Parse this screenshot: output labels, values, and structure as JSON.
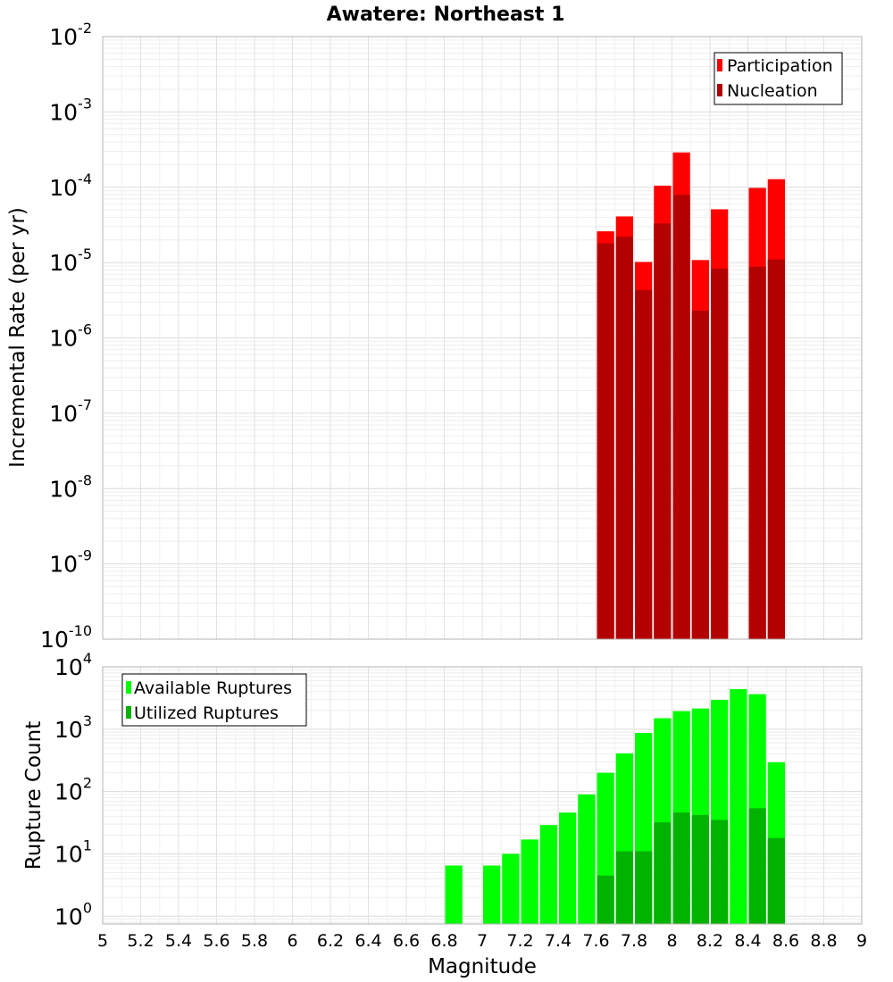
{
  "chart_data": [
    {
      "type": "bar",
      "title": "Awatere: Northeast 1",
      "xlabel": "",
      "ylabel": "Incremental Rate (per yr)",
      "yscale": "log",
      "ylim": [
        1e-10,
        0.01
      ],
      "xlim": [
        5,
        9
      ],
      "grid": true,
      "legend_position": "top-right",
      "bin_width": 0.1,
      "colors": {
        "participation": "#ff0000",
        "nucleation": "#b30000"
      },
      "series": [
        {
          "name": "Participation",
          "x": [
            7.65,
            7.75,
            7.85,
            7.95,
            8.05,
            8.15,
            8.25,
            8.45,
            8.55
          ],
          "values": [
            2.6e-05,
            4.1e-05,
            1.02e-05,
            0.000105,
            0.00029,
            1.08e-05,
            5.1e-05,
            9.8e-05,
            0.000128
          ]
        },
        {
          "name": "Nucleation",
          "x": [
            7.65,
            7.75,
            7.85,
            7.95,
            8.05,
            8.15,
            8.25,
            8.45,
            8.55
          ],
          "values": [
            1.8e-05,
            2.2e-05,
            4.3e-06,
            3.3e-05,
            7.9e-05,
            2.3e-06,
            8.3e-06,
            8.8e-06,
            1.1e-05
          ]
        }
      ],
      "yticks": [
        {
          "base": "10",
          "exp": "-10"
        },
        {
          "base": "10",
          "exp": "-9"
        },
        {
          "base": "10",
          "exp": "-8"
        },
        {
          "base": "10",
          "exp": "-7"
        },
        {
          "base": "10",
          "exp": "-6"
        },
        {
          "base": "10",
          "exp": "-5"
        },
        {
          "base": "10",
          "exp": "-4"
        },
        {
          "base": "10",
          "exp": "-3"
        },
        {
          "base": "10",
          "exp": "-2"
        }
      ]
    },
    {
      "type": "bar",
      "title": "",
      "xlabel": "Magnitude",
      "ylabel": "Rupture Count",
      "yscale": "log",
      "ylim": [
        0.75,
        10000
      ],
      "xlim": [
        5,
        9
      ],
      "grid": true,
      "legend_position": "top-left",
      "bin_width": 0.1,
      "colors": {
        "available": "#00ff00",
        "utilized": "#00b300"
      },
      "series": [
        {
          "name": "Available Ruptures",
          "x": [
            6.85,
            7.05,
            7.15,
            7.25,
            7.35,
            7.45,
            7.55,
            7.65,
            7.75,
            7.85,
            7.95,
            8.05,
            8.15,
            8.25,
            8.35,
            8.45,
            8.55
          ],
          "values": [
            6.5,
            6.5,
            10,
            17,
            29,
            46,
            90,
            200,
            410,
            870,
            1500,
            1950,
            2150,
            2950,
            4400,
            3650,
            295
          ]
        },
        {
          "name": "Utilized Ruptures",
          "x": [
            7.65,
            7.75,
            7.85,
            7.95,
            8.05,
            8.15,
            8.25,
            8.45,
            8.55
          ],
          "values": [
            4.5,
            11,
            11,
            32,
            46,
            42,
            35,
            54,
            18
          ]
        }
      ],
      "yticks": [
        {
          "base": "10",
          "exp": "0"
        },
        {
          "base": "10",
          "exp": "1"
        },
        {
          "base": "10",
          "exp": "2"
        },
        {
          "base": "10",
          "exp": "3"
        },
        {
          "base": "10",
          "exp": "4"
        }
      ],
      "xticks": [
        "5",
        "5.2",
        "5.4",
        "5.6",
        "5.8",
        "6",
        "6.2",
        "6.4",
        "6.6",
        "6.8",
        "7",
        "7.2",
        "7.4",
        "7.6",
        "7.8",
        "8",
        "8.2",
        "8.4",
        "8.6",
        "8.8",
        "9"
      ]
    }
  ]
}
